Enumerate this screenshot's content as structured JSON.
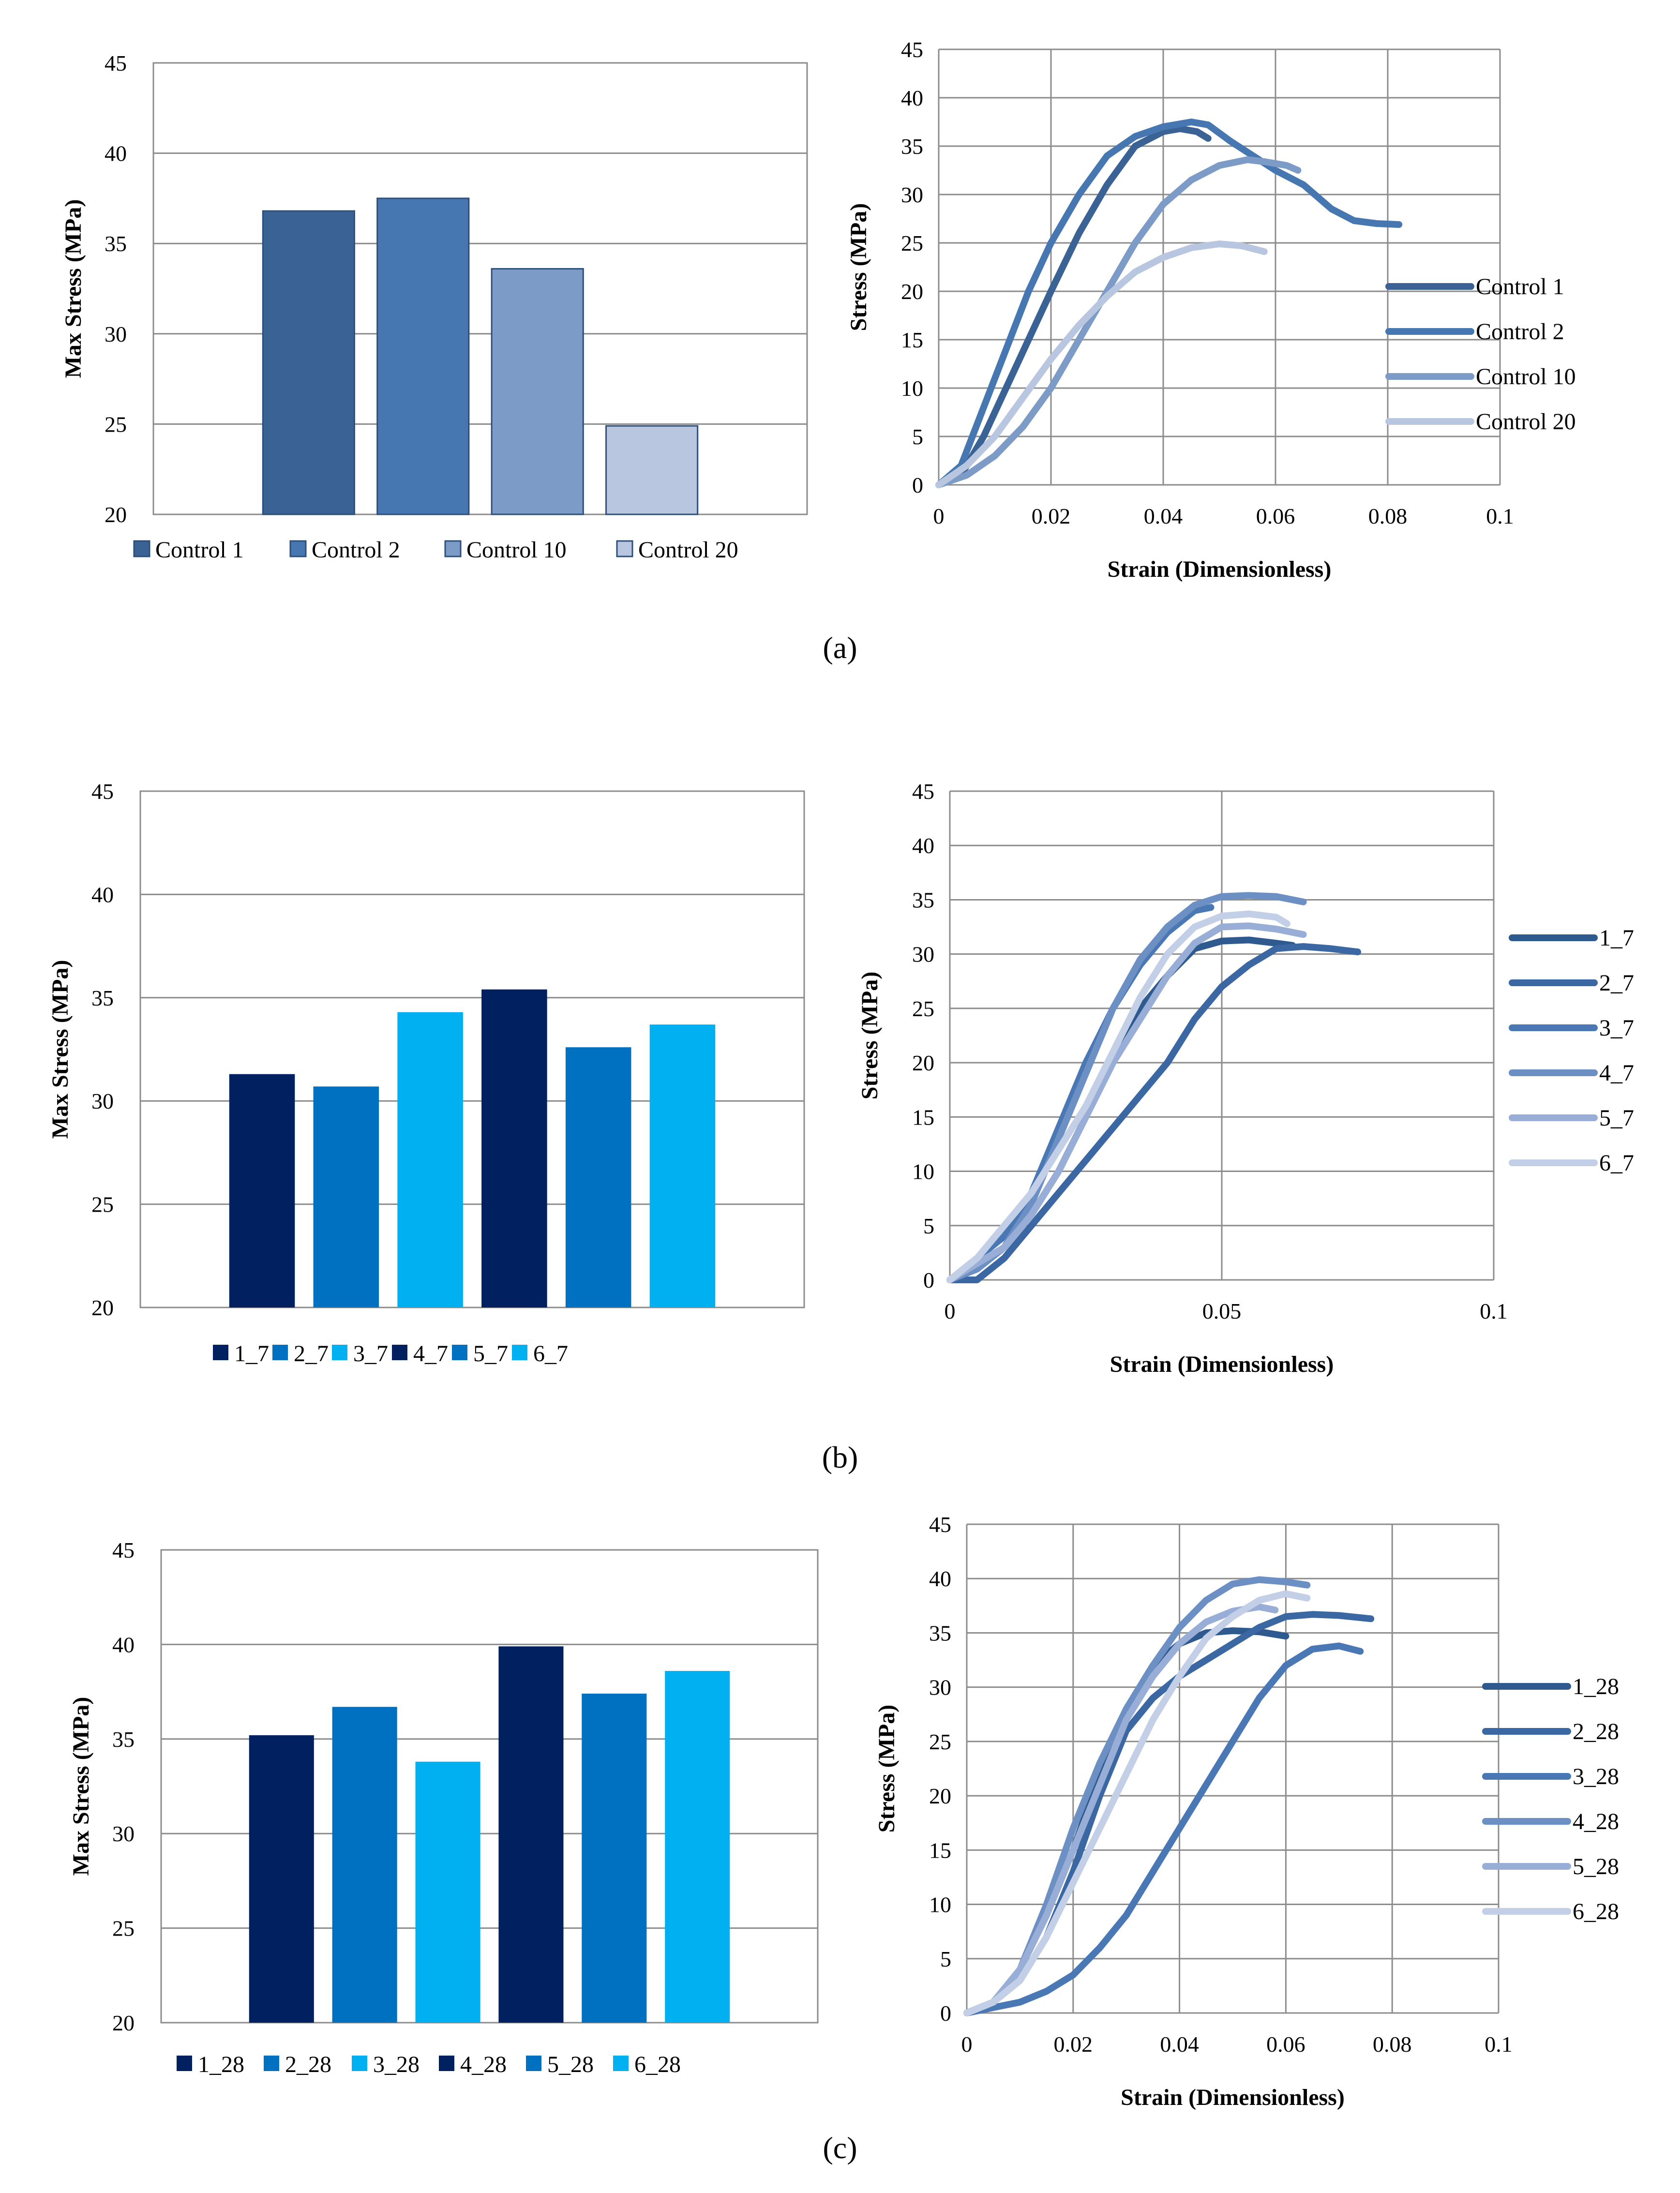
{
  "panel_labels": [
    "(a)",
    "(b)",
    "(c)"
  ],
  "chart_data": [
    {
      "id": "a_bar",
      "type": "bar",
      "title": "",
      "xlabel": "",
      "ylabel": "Max Stress (MPa)",
      "ylim": [
        20,
        45
      ],
      "yticks": [
        20,
        25,
        30,
        35,
        40,
        45
      ],
      "grid": true,
      "legend_position": "bottom",
      "categories": [
        "Control 1",
        "Control 2",
        "Control 10",
        "Control 20"
      ],
      "values": [
        36.8,
        37.5,
        33.6,
        24.9
      ],
      "colors": [
        "#3b6295",
        "#4677b0",
        "#7c9bc7",
        "#b8c6df"
      ]
    },
    {
      "id": "a_line",
      "type": "line",
      "title": "",
      "xlabel": "Strain (Dimensionless)",
      "ylabel": "Stress  (MPa)",
      "xlim": [
        0,
        0.1
      ],
      "ylim": [
        0,
        45
      ],
      "xticks": [
        0,
        0.02,
        0.04,
        0.06,
        0.08,
        0.1
      ],
      "xtick_labels": [
        "0",
        "0.02",
        "0.04",
        "0.06",
        "0.08",
        "0.1"
      ],
      "yticks": [
        0,
        5,
        10,
        15,
        20,
        25,
        30,
        35,
        40,
        45
      ],
      "grid": true,
      "legend_position": "right",
      "series": [
        {
          "name": "Control 1",
          "color": "#3b6295",
          "x": [
            0,
            0.004,
            0.008,
            0.012,
            0.016,
            0.02,
            0.025,
            0.03,
            0.035,
            0.04,
            0.043,
            0.046,
            0.048
          ],
          "y": [
            0,
            1,
            5,
            10,
            15,
            20,
            26,
            31,
            35,
            36.5,
            36.8,
            36.5,
            35.8
          ]
        },
        {
          "name": "Control 2",
          "color": "#4677b0",
          "x": [
            0,
            0.004,
            0.008,
            0.012,
            0.016,
            0.02,
            0.025,
            0.03,
            0.035,
            0.04,
            0.045,
            0.048,
            0.052,
            0.056,
            0.06,
            0.065,
            0.07,
            0.074,
            0.078,
            0.082
          ],
          "y": [
            0,
            2,
            8,
            14,
            20,
            25,
            30,
            34,
            36,
            37,
            37.5,
            37.2,
            35.5,
            34,
            32.5,
            31,
            28.5,
            27.3,
            27,
            26.9
          ]
        },
        {
          "name": "Control 10",
          "color": "#7c9bc7",
          "x": [
            0,
            0.005,
            0.01,
            0.015,
            0.02,
            0.025,
            0.03,
            0.035,
            0.04,
            0.045,
            0.05,
            0.055,
            0.058,
            0.062,
            0.064
          ],
          "y": [
            0,
            1,
            3,
            6,
            10,
            15,
            20,
            25,
            29,
            31.5,
            33,
            33.6,
            33.4,
            33,
            32.5
          ]
        },
        {
          "name": "Control 20",
          "color": "#b8c6df",
          "x": [
            0,
            0.005,
            0.01,
            0.015,
            0.02,
            0.025,
            0.03,
            0.035,
            0.04,
            0.045,
            0.05,
            0.054,
            0.058
          ],
          "y": [
            0,
            2,
            5,
            9,
            13,
            16.5,
            19.5,
            22,
            23.5,
            24.5,
            24.9,
            24.7,
            24.1
          ]
        }
      ]
    },
    {
      "id": "b_bar",
      "type": "bar",
      "title": "",
      "xlabel": "",
      "ylabel": "Max Stress (MPa)",
      "ylim": [
        20,
        45
      ],
      "yticks": [
        20,
        25,
        30,
        35,
        40,
        45
      ],
      "grid": true,
      "legend_position": "bottom",
      "categories": [
        "1_7",
        "2_7",
        "3_7",
        "4_7",
        "5_7",
        "6_7"
      ],
      "values": [
        31.3,
        30.7,
        34.3,
        35.4,
        32.6,
        33.7
      ],
      "colors": [
        "#002060",
        "#0070c0",
        "#00b0f0",
        "#002060",
        "#0070c0",
        "#00b0f0"
      ]
    },
    {
      "id": "b_line",
      "type": "line",
      "title": "",
      "xlabel": "Strain (Dimensionless)",
      "ylabel": "Stress (MPa)",
      "xlim": [
        0,
        0.1
      ],
      "ylim": [
        0,
        45
      ],
      "xticks": [
        0,
        0.05,
        0.1
      ],
      "xtick_labels": [
        "0",
        "0.05",
        "0.1"
      ],
      "yticks": [
        0,
        5,
        10,
        15,
        20,
        25,
        30,
        35,
        40,
        45
      ],
      "grid": true,
      "legend_position": "right",
      "series": [
        {
          "name": "1_7",
          "color": "#2f5a8f",
          "x": [
            0,
            0.005,
            0.01,
            0.015,
            0.02,
            0.025,
            0.03,
            0.035,
            0.04,
            0.045,
            0.05,
            0.055,
            0.06,
            0.063
          ],
          "y": [
            0,
            1,
            3,
            6,
            10,
            15,
            20,
            25,
            28,
            30.5,
            31.2,
            31.3,
            31,
            30.8
          ]
        },
        {
          "name": "2_7",
          "color": "#3b68a3",
          "x": [
            0,
            0.005,
            0.01,
            0.015,
            0.02,
            0.025,
            0.03,
            0.035,
            0.04,
            0.045,
            0.05,
            0.055,
            0.06,
            0.065,
            0.07,
            0.075
          ],
          "y": [
            0,
            0,
            2,
            5,
            8,
            11,
            14,
            17,
            20,
            24,
            27,
            29,
            30.5,
            30.7,
            30.5,
            30.2
          ]
        },
        {
          "name": "3_7",
          "color": "#4a78b5",
          "x": [
            0,
            0.005,
            0.01,
            0.015,
            0.02,
            0.025,
            0.03,
            0.035,
            0.04,
            0.045,
            0.048
          ],
          "y": [
            0,
            2,
            4,
            8,
            14,
            20,
            25,
            29,
            32,
            34,
            34.3
          ]
        },
        {
          "name": "4_7",
          "color": "#6d90c4",
          "x": [
            0,
            0.005,
            0.01,
            0.015,
            0.02,
            0.025,
            0.03,
            0.035,
            0.04,
            0.045,
            0.05,
            0.055,
            0.06,
            0.065
          ],
          "y": [
            0,
            1,
            3,
            7,
            13,
            19,
            25,
            29.5,
            32.5,
            34.5,
            35.3,
            35.4,
            35.3,
            34.8
          ]
        },
        {
          "name": "5_7",
          "color": "#99aed6",
          "x": [
            0,
            0.005,
            0.01,
            0.015,
            0.02,
            0.025,
            0.03,
            0.035,
            0.04,
            0.045,
            0.05,
            0.055,
            0.06,
            0.065
          ],
          "y": [
            0,
            1.5,
            3,
            6,
            10,
            15,
            20,
            24,
            28,
            31,
            32.5,
            32.6,
            32.3,
            31.8
          ]
        },
        {
          "name": "6_7",
          "color": "#c3cfe6",
          "x": [
            0,
            0.005,
            0.01,
            0.015,
            0.02,
            0.025,
            0.03,
            0.035,
            0.04,
            0.045,
            0.05,
            0.055,
            0.06,
            0.062
          ],
          "y": [
            0,
            2,
            5,
            8,
            12,
            16,
            21,
            26,
            30,
            32.5,
            33.5,
            33.7,
            33.4,
            32.8
          ]
        }
      ]
    },
    {
      "id": "c_bar",
      "type": "bar",
      "title": "",
      "xlabel": "",
      "ylabel": "Max Stress (MPa)",
      "ylim": [
        20,
        45
      ],
      "yticks": [
        20,
        25,
        30,
        35,
        40,
        45
      ],
      "grid": true,
      "legend_position": "bottom",
      "categories": [
        "1_28",
        "2_28",
        "3_28",
        "4_28",
        "5_28",
        "6_28"
      ],
      "values": [
        35.2,
        36.7,
        33.8,
        39.9,
        37.4,
        38.6
      ],
      "colors": [
        "#002060",
        "#0070c0",
        "#00b0f0",
        "#002060",
        "#0070c0",
        "#00b0f0"
      ]
    },
    {
      "id": "c_line",
      "type": "line",
      "title": "",
      "xlabel": "Strain (Dimensionless)",
      "ylabel": "Stress (MPa)",
      "xlim": [
        0,
        0.1
      ],
      "ylim": [
        0,
        45
      ],
      "xticks": [
        0,
        0.02,
        0.04,
        0.06,
        0.08,
        0.1
      ],
      "xtick_labels": [
        "0",
        "0.02",
        "0.04",
        "0.06",
        "0.08",
        "0.1"
      ],
      "yticks": [
        0,
        5,
        10,
        15,
        20,
        25,
        30,
        35,
        40,
        45
      ],
      "grid": true,
      "legend_position": "right",
      "series": [
        {
          "name": "1_28",
          "color": "#2f5a8f",
          "x": [
            0,
            0.005,
            0.01,
            0.015,
            0.02,
            0.025,
            0.03,
            0.035,
            0.04,
            0.045,
            0.05,
            0.055,
            0.06
          ],
          "y": [
            0,
            1,
            4,
            9,
            15,
            22,
            28,
            32,
            34,
            35,
            35.2,
            35.1,
            34.7
          ]
        },
        {
          "name": "2_28",
          "color": "#3b68a3",
          "x": [
            0,
            0.005,
            0.01,
            0.015,
            0.02,
            0.025,
            0.03,
            0.035,
            0.04,
            0.045,
            0.05,
            0.055,
            0.06,
            0.065,
            0.07,
            0.076
          ],
          "y": [
            0,
            1,
            3,
            7,
            13,
            20,
            26,
            29,
            31,
            32.5,
            34,
            35.5,
            36.5,
            36.7,
            36.6,
            36.3
          ]
        },
        {
          "name": "3_28",
          "color": "#4a78b5",
          "x": [
            0,
            0.005,
            0.01,
            0.015,
            0.02,
            0.025,
            0.03,
            0.035,
            0.04,
            0.045,
            0.05,
            0.055,
            0.06,
            0.065,
            0.07,
            0.074
          ],
          "y": [
            0,
            0.5,
            1,
            2,
            3.5,
            6,
            9,
            13,
            17,
            21,
            25,
            29,
            32,
            33.5,
            33.8,
            33.3
          ]
        },
        {
          "name": "4_28",
          "color": "#6d90c4",
          "x": [
            0,
            0.005,
            0.01,
            0.015,
            0.02,
            0.025,
            0.03,
            0.035,
            0.04,
            0.045,
            0.05,
            0.055,
            0.06,
            0.064
          ],
          "y": [
            0,
            1,
            4,
            10,
            17,
            23,
            28,
            32,
            35.5,
            38,
            39.5,
            39.9,
            39.7,
            39.4
          ]
        },
        {
          "name": "5_28",
          "color": "#99aed6",
          "x": [
            0,
            0.005,
            0.01,
            0.015,
            0.02,
            0.025,
            0.03,
            0.035,
            0.04,
            0.045,
            0.05,
            0.055,
            0.058
          ],
          "y": [
            0,
            1,
            4,
            9,
            15,
            21,
            27,
            31,
            34,
            36,
            37,
            37.4,
            37.1
          ]
        },
        {
          "name": "6_28",
          "color": "#c3cfe6",
          "x": [
            0,
            0.005,
            0.01,
            0.015,
            0.02,
            0.025,
            0.03,
            0.035,
            0.04,
            0.045,
            0.05,
            0.055,
            0.06,
            0.064
          ],
          "y": [
            0,
            1,
            3,
            7,
            12,
            17,
            22,
            27,
            31,
            34.5,
            36.5,
            38,
            38.6,
            38.2
          ]
        }
      ]
    }
  ]
}
